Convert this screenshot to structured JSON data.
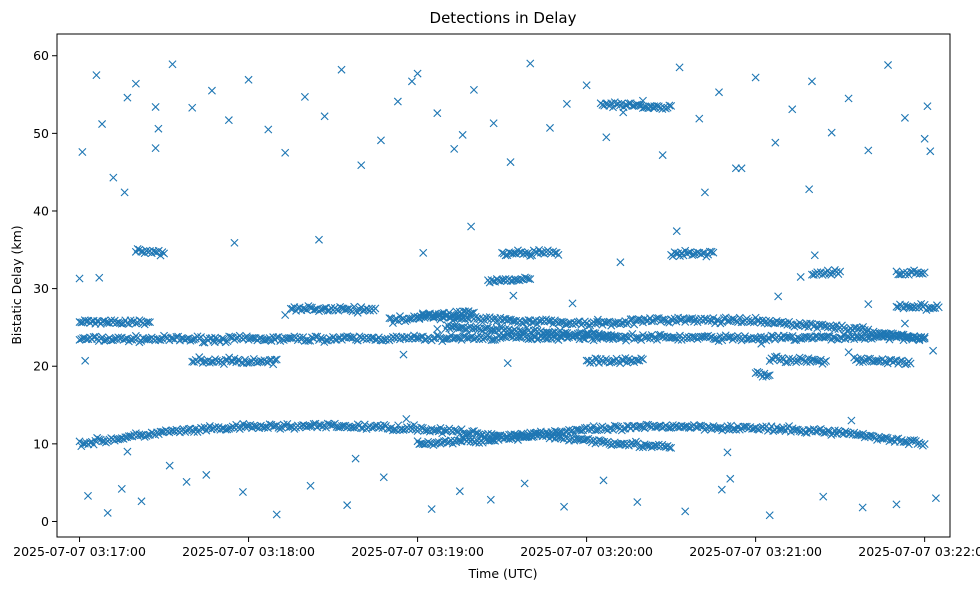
{
  "chart_data": {
    "type": "scatter",
    "title": "Detections in Delay",
    "xlabel": "Time (UTC)",
    "ylabel": "Bistatic Delay (km)",
    "marker": "x",
    "color": "#1f77b4",
    "grid": false,
    "legend": "none",
    "xlim": [
      "2025-07-07 03:16:52",
      "2025-07-07 03:22:09"
    ],
    "ylim": [
      -2.0,
      62.8
    ],
    "x_ticks": [
      "2025-07-07 03:17:00",
      "2025-07-07 03:18:00",
      "2025-07-07 03:19:00",
      "2025-07-07 03:20:00",
      "2025-07-07 03:21:00",
      "2025-07-07 03:22:00"
    ],
    "y_ticks": [
      0,
      10,
      20,
      30,
      40,
      50,
      60
    ],
    "series": [
      {
        "tracks": [
          {
            "x": [
              "2025-07-07 03:17:00",
              "2025-07-07 03:18:00",
              "2025-07-07 03:19:00",
              "2025-07-07 03:20:00",
              "2025-07-07 03:21:00",
              "2025-07-07 03:22:00"
            ],
            "y": [
              23.5,
              23.5,
              23.6,
              23.8,
              23.6,
              23.8
            ]
          },
          {
            "x": [
              "2025-07-07 03:17:00",
              "2025-07-07 03:17:30",
              "2025-07-07 03:18:00",
              "2025-07-07 03:18:30",
              "2025-07-07 03:19:00",
              "2025-07-07 03:19:30",
              "2025-07-07 03:20:00",
              "2025-07-07 03:20:30",
              "2025-07-07 03:21:00",
              "2025-07-07 03:21:30",
              "2025-07-07 03:22:00"
            ],
            "y": [
              10.0,
              11.5,
              12.2,
              12.3,
              12.0,
              11.0,
              11.8,
              12.3,
              12.0,
              11.5,
              10.0
            ]
          },
          {
            "x": [
              "2025-07-07 03:19:00",
              "2025-07-07 03:19:30",
              "2025-07-07 03:20:00",
              "2025-07-07 03:20:30",
              "2025-07-07 03:21:00",
              "2025-07-07 03:21:30",
              "2025-07-07 03:22:00"
            ],
            "y": [
              26.5,
              26.0,
              25.5,
              26.0,
              25.8,
              25.0,
              23.5
            ]
          },
          {
            "x": [
              "2025-07-07 03:19:00",
              "2025-07-07 03:19:45",
              "2025-07-07 03:20:30"
            ],
            "y": [
              10.0,
              11.0,
              9.5
            ]
          },
          {
            "x": [
              "2025-07-07 03:19:10",
              "2025-07-07 03:19:40",
              "2025-07-07 03:20:10"
            ],
            "y": [
              25.0,
              24.5,
              23.8
            ]
          },
          {
            "x": [
              "2025-07-07 03:17:40",
              "2025-07-07 03:18:10"
            ],
            "y": [
              20.7,
              20.6
            ]
          },
          {
            "x": [
              "2025-07-07 03:17:00",
              "2025-07-07 03:17:25"
            ],
            "y": [
              25.8,
              25.6
            ]
          },
          {
            "x": [
              "2025-07-07 03:17:20",
              "2025-07-07 03:17:30"
            ],
            "y": [
              34.8,
              34.7
            ]
          },
          {
            "x": [
              "2025-07-07 03:18:15",
              "2025-07-07 03:18:45"
            ],
            "y": [
              27.5,
              27.2
            ]
          },
          {
            "x": [
              "2025-07-07 03:18:50",
              "2025-07-07 03:19:20"
            ],
            "y": [
              26.0,
              27.0
            ]
          },
          {
            "x": [
              "2025-07-07 03:19:25",
              "2025-07-07 03:19:40"
            ],
            "y": [
              31.0,
              31.2
            ]
          },
          {
            "x": [
              "2025-07-07 03:19:30",
              "2025-07-07 03:19:50"
            ],
            "y": [
              34.5,
              34.6
            ]
          },
          {
            "x": [
              "2025-07-07 03:20:00",
              "2025-07-07 03:20:20"
            ],
            "y": [
              20.6,
              20.7
            ]
          },
          {
            "x": [
              "2025-07-07 03:20:05",
              "2025-07-07 03:20:30"
            ],
            "y": [
              53.8,
              53.3
            ]
          },
          {
            "x": [
              "2025-07-07 03:20:30",
              "2025-07-07 03:20:45"
            ],
            "y": [
              34.5,
              34.6
            ]
          },
          {
            "x": [
              "2025-07-07 03:21:05",
              "2025-07-07 03:21:25"
            ],
            "y": [
              21.0,
              20.6
            ]
          },
          {
            "x": [
              "2025-07-07 03:21:20",
              "2025-07-07 03:21:30"
            ],
            "y": [
              32.0,
              32.1
            ]
          },
          {
            "x": [
              "2025-07-07 03:21:35",
              "2025-07-07 03:21:55"
            ],
            "y": [
              20.8,
              20.5
            ]
          },
          {
            "x": [
              "2025-07-07 03:21:50",
              "2025-07-07 03:22:00"
            ],
            "y": [
              32.0,
              32.0
            ]
          },
          {
            "x": [
              "2025-07-07 03:21:50",
              "2025-07-07 03:22:05"
            ],
            "y": [
              27.8,
              27.5
            ]
          },
          {
            "x": [
              "2025-07-07 03:21:00",
              "2025-07-07 03:21:05"
            ],
            "y": [
              19.0,
              18.8
            ]
          }
        ],
        "scattered": {
          "x": [
            "2025-07-07 03:17:00",
            "2025-07-07 03:17:01",
            "2025-07-07 03:17:02",
            "2025-07-07 03:17:07",
            "2025-07-07 03:17:16",
            "2025-07-07 03:17:17",
            "2025-07-07 03:17:27",
            "2025-07-07 03:17:28",
            "2025-07-07 03:17:32",
            "2025-07-07 03:17:48",
            "2025-07-07 03:17:55",
            "2025-07-07 03:18:13",
            "2025-07-07 03:18:25",
            "2025-07-07 03:18:38",
            "2025-07-07 03:18:55",
            "2025-07-07 03:18:56",
            "2025-07-07 03:18:58",
            "2025-07-07 03:19:02",
            "2025-07-07 03:19:07",
            "2025-07-07 03:19:16",
            "2025-07-07 03:19:19",
            "2025-07-07 03:19:32",
            "2025-07-07 03:19:34",
            "2025-07-07 03:19:55",
            "2025-07-07 03:20:04",
            "2025-07-07 03:20:12",
            "2025-07-07 03:20:14",
            "2025-07-07 03:20:24",
            "2025-07-07 03:20:32",
            "2025-07-07 03:20:42",
            "2025-07-07 03:20:50",
            "2025-07-07 03:20:51",
            "2025-07-07 03:20:55",
            "2025-07-07 03:21:02",
            "2025-07-07 03:21:08",
            "2025-07-07 03:21:16",
            "2025-07-07 03:21:19",
            "2025-07-07 03:21:21",
            "2025-07-07 03:21:33",
            "2025-07-07 03:21:34",
            "2025-07-07 03:21:40",
            "2025-07-07 03:21:53",
            "2025-07-07 03:22:01",
            "2025-07-07 03:22:02",
            "2025-07-07 03:22:03",
            "2025-07-07 03:17:06",
            "2025-07-07 03:17:08",
            "2025-07-07 03:17:12",
            "2025-07-07 03:17:17",
            "2025-07-07 03:17:20",
            "2025-07-07 03:17:27",
            "2025-07-07 03:17:33",
            "2025-07-07 03:17:40",
            "2025-07-07 03:17:47",
            "2025-07-07 03:17:53",
            "2025-07-07 03:18:00",
            "2025-07-07 03:18:07",
            "2025-07-07 03:18:13",
            "2025-07-07 03:18:20",
            "2025-07-07 03:18:27",
            "2025-07-07 03:18:33",
            "2025-07-07 03:18:40",
            "2025-07-07 03:18:47",
            "2025-07-07 03:18:53",
            "2025-07-07 03:19:00",
            "2025-07-07 03:19:07",
            "2025-07-07 03:19:13",
            "2025-07-07 03:19:20",
            "2025-07-07 03:19:27",
            "2025-07-07 03:19:33",
            "2025-07-07 03:19:40",
            "2025-07-07 03:19:47",
            "2025-07-07 03:19:53",
            "2025-07-07 03:20:00",
            "2025-07-07 03:20:07",
            "2025-07-07 03:20:13",
            "2025-07-07 03:20:20",
            "2025-07-07 03:20:27",
            "2025-07-07 03:20:33",
            "2025-07-07 03:20:40",
            "2025-07-07 03:20:47",
            "2025-07-07 03:20:53",
            "2025-07-07 03:21:00",
            "2025-07-07 03:21:07",
            "2025-07-07 03:21:13",
            "2025-07-07 03:21:20",
            "2025-07-07 03:21:27",
            "2025-07-07 03:21:33",
            "2025-07-07 03:21:40",
            "2025-07-07 03:21:47",
            "2025-07-07 03:21:53",
            "2025-07-07 03:22:00",
            "2025-07-07 03:17:03",
            "2025-07-07 03:17:10",
            "2025-07-07 03:17:15",
            "2025-07-07 03:17:22",
            "2025-07-07 03:17:38",
            "2025-07-07 03:17:45",
            "2025-07-07 03:17:58",
            "2025-07-07 03:18:10",
            "2025-07-07 03:18:22",
            "2025-07-07 03:18:35",
            "2025-07-07 03:18:48",
            "2025-07-07 03:19:05",
            "2025-07-07 03:19:15",
            "2025-07-07 03:19:26",
            "2025-07-07 03:19:38",
            "2025-07-07 03:19:52",
            "2025-07-07 03:20:06",
            "2025-07-07 03:20:18",
            "2025-07-07 03:20:35",
            "2025-07-07 03:20:48",
            "2025-07-07 03:21:05",
            "2025-07-07 03:21:24",
            "2025-07-07 03:21:38",
            "2025-07-07 03:21:50",
            "2025-07-07 03:22:04"
          ],
          "y": [
            31.3,
            47.6,
            20.7,
            31.4,
            42.4,
            9.0,
            53.4,
            50.6,
            7.2,
            23.1,
            35.9,
            26.6,
            36.3,
            8.1,
            21.5,
            13.2,
            56.7,
            34.6,
            24.8,
            49.8,
            38.0,
            20.4,
            29.1,
            28.1,
            26.0,
            33.4,
            23.3,
            53.5,
            37.4,
            42.4,
            8.9,
            5.5,
            45.5,
            22.9,
            29.0,
            31.5,
            42.8,
            34.3,
            21.8,
            13.0,
            28.0,
            25.5,
            53.5,
            47.7,
            22.0,
            57.5,
            51.2,
            44.3,
            54.6,
            56.4,
            48.1,
            58.9,
            53.3,
            55.5,
            51.7,
            56.9,
            50.5,
            47.5,
            54.7,
            52.2,
            58.2,
            45.9,
            49.1,
            54.1,
            57.7,
            52.6,
            48.0,
            55.6,
            51.3,
            46.3,
            59.0,
            50.7,
            53.8,
            56.2,
            49.5,
            52.7,
            54.2,
            47.2,
            58.5,
            51.9,
            55.3,
            45.5,
            57.2,
            48.8,
            53.1,
            56.7,
            50.1,
            54.5,
            47.8,
            58.8,
            52.0,
            49.3,
            3.3,
            1.1,
            4.2,
            2.6,
            5.1,
            6.0,
            3.8,
            0.9,
            4.6,
            2.1,
            5.7,
            1.6,
            3.9,
            2.8,
            4.9,
            1.9,
            5.3,
            2.5,
            1.3,
            4.1,
            0.8,
            3.2,
            1.8,
            2.2,
            3.0
          ]
        }
      }
    ]
  }
}
